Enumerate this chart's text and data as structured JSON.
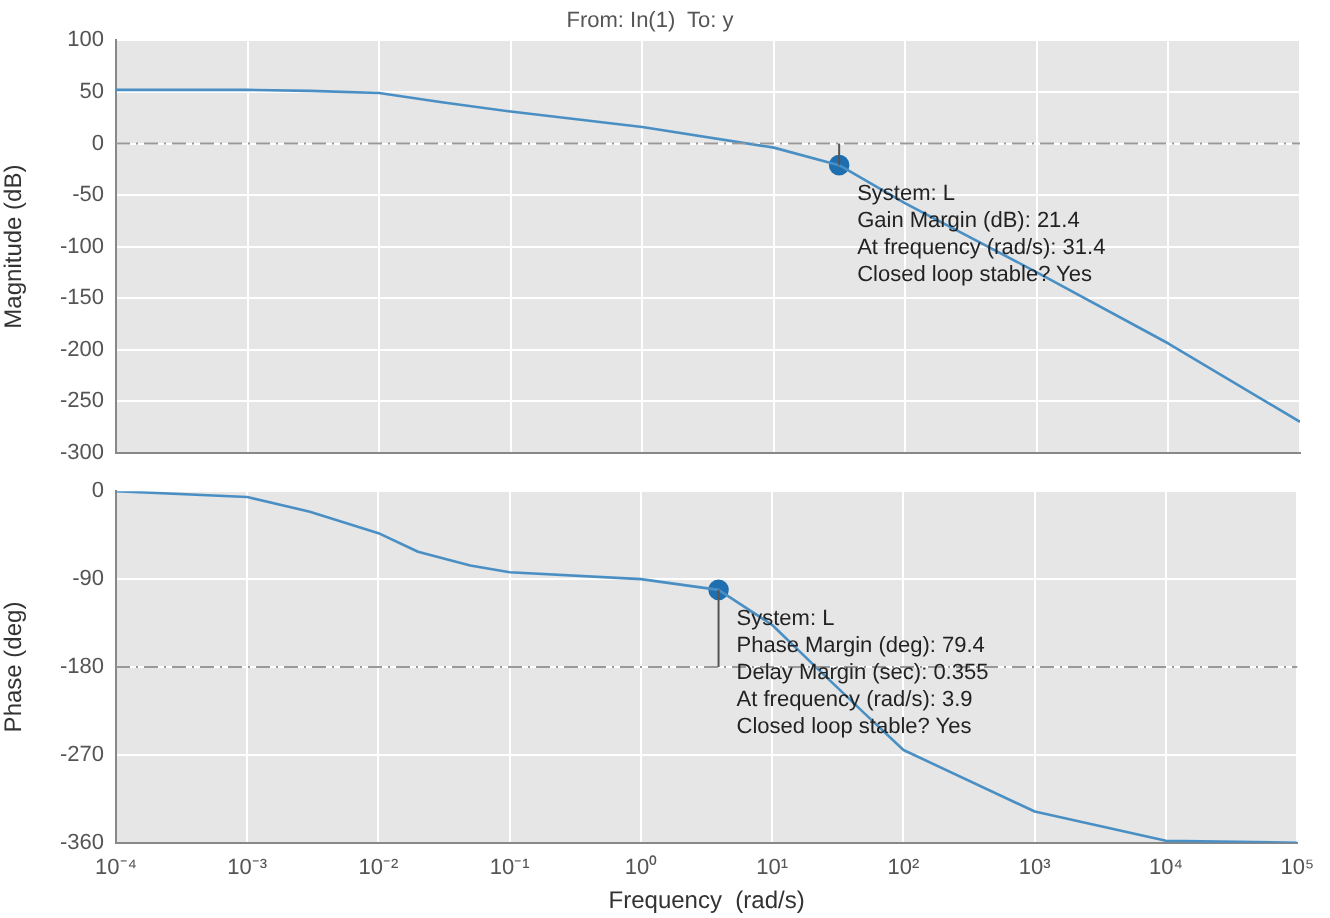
{
  "chart_data": [
    {
      "type": "line",
      "title": "From: In(1)  To: y",
      "ylabel": "Magnitude (dB)",
      "log": "x",
      "grid": true,
      "legend": false,
      "tick_labels": "y",
      "xlim": [
        0.0001,
        100000
      ],
      "ylim": [
        -300,
        100
      ],
      "xticks": [
        {
          "value": 0.0001,
          "label": null
        },
        {
          "value": 0.001,
          "label": null
        },
        {
          "value": 0.01,
          "label": null
        },
        {
          "value": 0.1,
          "label": null
        },
        {
          "value": 1,
          "label": null
        },
        {
          "value": 10,
          "label": null
        },
        {
          "value": 100,
          "label": null
        },
        {
          "value": 1000,
          "label": null
        },
        {
          "value": 10000,
          "label": null
        },
        {
          "value": 100000,
          "label": null
        }
      ],
      "yticks": [
        100,
        50,
        0,
        -50,
        -100,
        -150,
        -200,
        -250,
        -300
      ],
      "series": [
        {
          "type": "line",
          "color": "#4a8fc4",
          "marker": "none",
          "line_style": "solid",
          "x": [
            0.0001,
            0.001,
            0.003,
            0.01,
            0.03,
            0.1,
            1,
            10,
            31.4,
            100,
            1000,
            10000,
            100000
          ],
          "values": [
            52,
            52,
            51,
            49,
            40,
            31,
            16,
            -4,
            -21,
            -58,
            -125,
            -194,
            -270
          ]
        },
        {
          "type": "scatter",
          "color": "#1f6fb0",
          "marker": "circle",
          "x": [
            31.4
          ],
          "values": [
            -21
          ]
        }
      ],
      "ref_lines": [
        {
          "axis": "y",
          "value": 0,
          "color": "#999999",
          "line_style": "dashdot"
        }
      ],
      "annotations": [
        {
          "text": "System: L\nGain Margin (dB): 21.4\nAt frequency (rad/s): 31.4\nClosed loop stable? Yes",
          "x": 31.4,
          "y": -21
        }
      ]
    },
    {
      "type": "line",
      "xlabel": "Frequency  (rad/s)",
      "ylabel": "Phase (deg)",
      "log": "x",
      "grid": true,
      "legend": false,
      "xlim": [
        0.0001,
        100000
      ],
      "ylim": [
        -360,
        0
      ],
      "xticks": [
        {
          "value": 0.0001,
          "label": "10⁻⁴"
        },
        {
          "value": 0.001,
          "label": "10⁻³"
        },
        {
          "value": 0.01,
          "label": "10⁻²"
        },
        {
          "value": 0.1,
          "label": "10⁻¹"
        },
        {
          "value": 1,
          "label": "10⁰"
        },
        {
          "value": 10,
          "label": "10¹"
        },
        {
          "value": 100,
          "label": "10²"
        },
        {
          "value": 1000,
          "label": "10³"
        },
        {
          "value": 10000,
          "label": "10⁴"
        },
        {
          "value": 100000,
          "label": "10⁵"
        }
      ],
      "yticks": [
        0,
        -90,
        -180,
        -270,
        -360
      ],
      "series": [
        {
          "type": "line",
          "color": "#4a8fc4",
          "marker": "none",
          "line_style": "solid",
          "x": [
            0.0001,
            0.001,
            0.003,
            0.01,
            0.02,
            0.05,
            0.1,
            1,
            3.9,
            10,
            20,
            50,
            100,
            1000,
            10000,
            100000
          ],
          "values": [
            0,
            -6,
            -21,
            -43,
            -62,
            -76,
            -83,
            -90,
            -101,
            -137,
            -176,
            -227,
            -265,
            -328,
            -358,
            -360
          ]
        },
        {
          "type": "scatter",
          "color": "#1f6fb0",
          "marker": "circle",
          "x": [
            3.9
          ],
          "values": [
            -101
          ]
        }
      ],
      "ref_lines": [
        {
          "axis": "y",
          "value": -180,
          "color": "#999999",
          "line_style": "dashdot"
        }
      ],
      "annotations": [
        {
          "text": "System: L\nPhase Margin (deg): 79.4\nDelay Margin (sec): 0.355\nAt frequency (rad/s): 3.9\nClosed loop stable? Yes",
          "x": 3.9,
          "y": -101
        }
      ]
    }
  ]
}
